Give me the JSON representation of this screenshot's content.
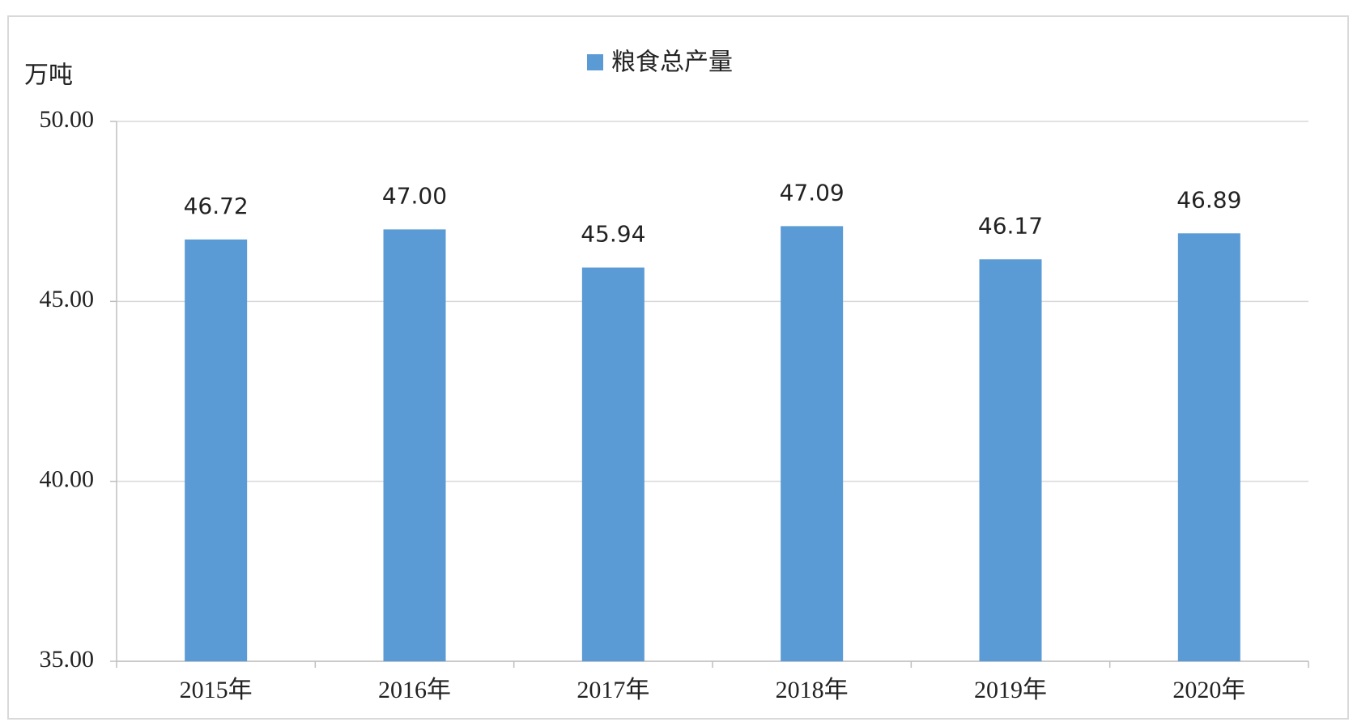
{
  "chart_data": {
    "type": "bar",
    "y_label": "万吨",
    "categories": [
      "2015年",
      "2016年",
      "2017年",
      "2018年",
      "2019年",
      "2020年"
    ],
    "series": [
      {
        "name": "粮食总产量",
        "color": "#5b9bd5",
        "values": [
          46.72,
          47.0,
          45.94,
          47.09,
          46.17,
          46.89
        ],
        "value_labels": [
          "46.72",
          "47.00",
          "45.94",
          "47.09",
          "46.17",
          "46.89"
        ]
      }
    ],
    "ylim": [
      35,
      50
    ],
    "yticks": [
      {
        "value": 35,
        "label": "35.00"
      },
      {
        "value": 40,
        "label": "40.00"
      },
      {
        "value": 45,
        "label": "45.00"
      },
      {
        "value": 50,
        "label": "50.00"
      }
    ],
    "grid": true,
    "legend": "top"
  }
}
